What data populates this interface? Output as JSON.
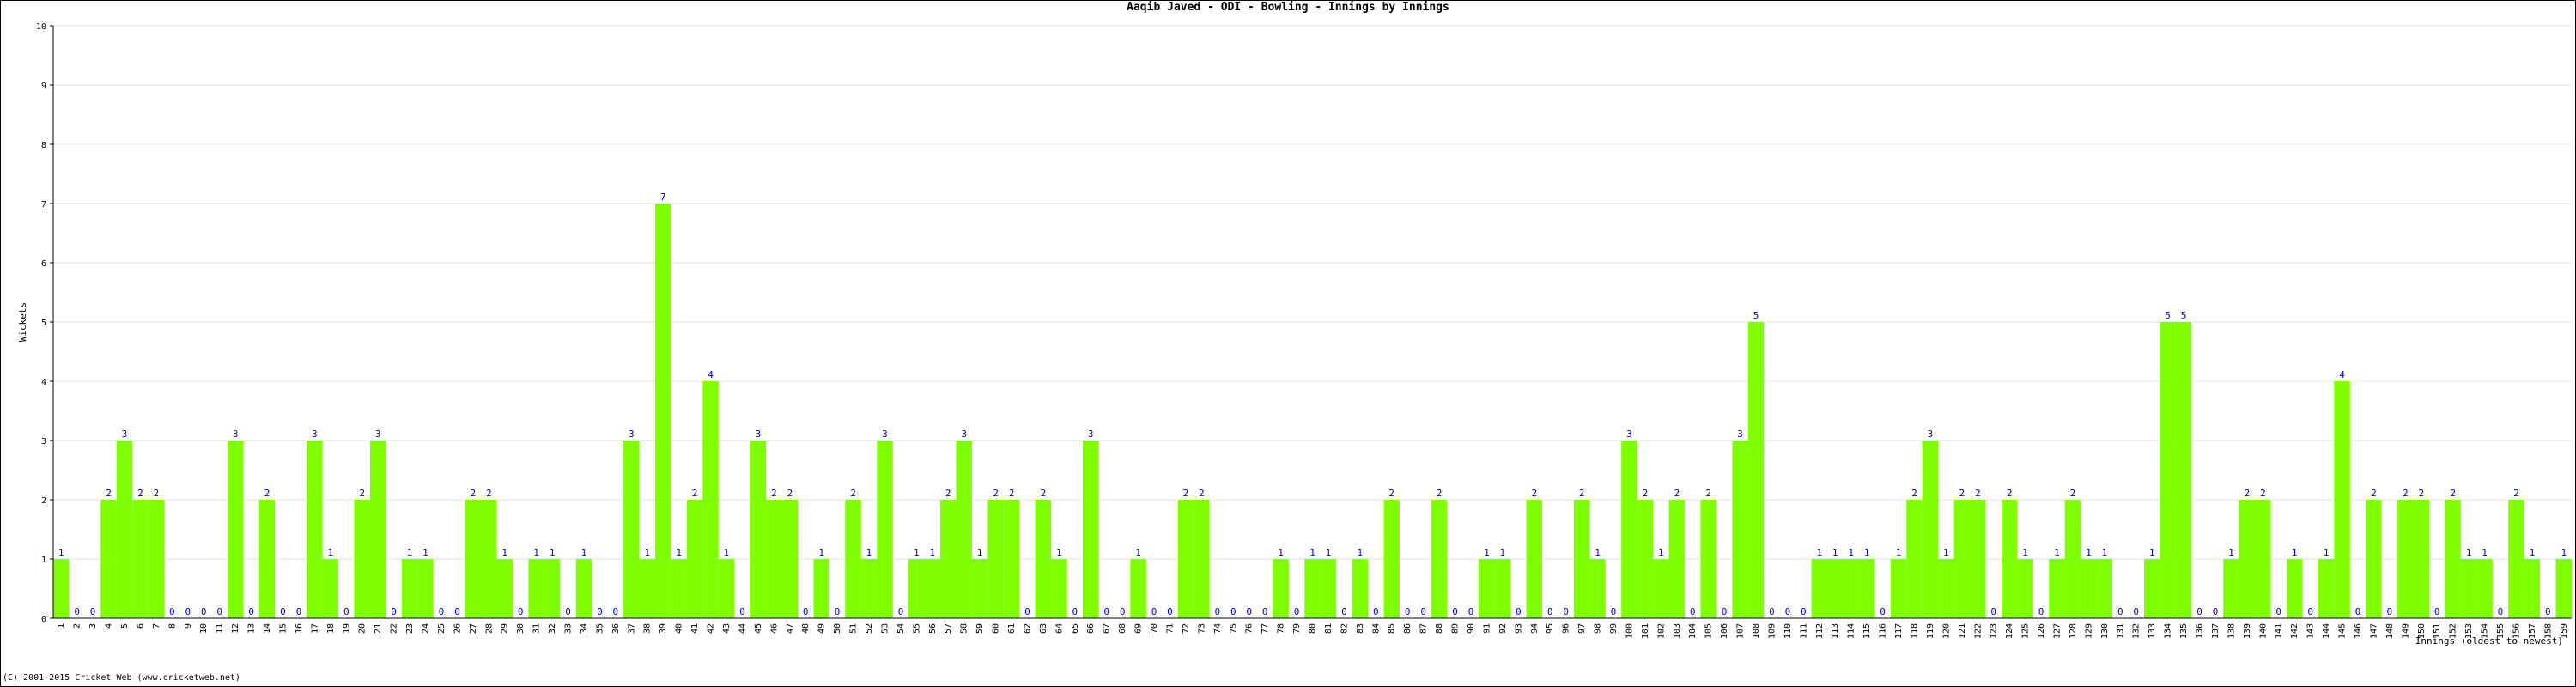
{
  "chart_data": {
    "type": "bar",
    "title": "Aaqib Javed - ODI - Bowling - Innings by Innings",
    "y_label": "Wickets",
    "x_label": "Innings (oldest to newest)",
    "footer": "(C) 2001-2015 Cricket Web (www.cricketweb.net)",
    "color": "#7fff00",
    "label_color": "#0000cc",
    "grid": true,
    "ylim": [
      0,
      10
    ],
    "yticks": [
      0,
      1,
      2,
      3,
      4,
      5,
      6,
      7,
      8,
      9,
      10
    ],
    "categories": [
      "1",
      "2",
      "3",
      "4",
      "5",
      "6",
      "7",
      "8",
      "9",
      "10",
      "11",
      "12",
      "13",
      "14",
      "15",
      "16",
      "17",
      "18",
      "19",
      "20",
      "21",
      "22",
      "23",
      "24",
      "25",
      "26",
      "27",
      "28",
      "29",
      "30",
      "31",
      "32",
      "33",
      "34",
      "35",
      "36",
      "37",
      "38",
      "39",
      "40",
      "41",
      "42",
      "43",
      "44",
      "45",
      "46",
      "47",
      "48",
      "49",
      "50",
      "51",
      "52",
      "53",
      "54",
      "55",
      "56",
      "57",
      "58",
      "59",
      "60",
      "61",
      "62",
      "63",
      "64",
      "65",
      "66",
      "67",
      "68",
      "69",
      "70",
      "71",
      "72",
      "73",
      "74",
      "75",
      "76",
      "77",
      "78",
      "79",
      "80",
      "81",
      "82",
      "83",
      "84",
      "85",
      "86",
      "87",
      "88",
      "89",
      "90",
      "91",
      "92",
      "93",
      "94",
      "95",
      "96",
      "97",
      "98",
      "99",
      "100",
      "101",
      "102",
      "103",
      "104",
      "105",
      "106",
      "107",
      "108",
      "109",
      "110",
      "111",
      "112",
      "113",
      "114",
      "115",
      "116",
      "117",
      "118",
      "119",
      "120",
      "121",
      "122",
      "123",
      "124",
      "125",
      "126",
      "127",
      "128",
      "129",
      "130",
      "131",
      "132",
      "133",
      "134",
      "135",
      "136",
      "137",
      "138",
      "139",
      "140",
      "141",
      "142",
      "143",
      "144",
      "145",
      "146",
      "147",
      "148",
      "149",
      "150",
      "151",
      "152",
      "153",
      "154",
      "155",
      "156",
      "157",
      "158",
      "159"
    ],
    "values": [
      1,
      0,
      0,
      2,
      3,
      2,
      2,
      0,
      0,
      0,
      0,
      3,
      0,
      2,
      0,
      0,
      3,
      1,
      0,
      2,
      3,
      0,
      1,
      1,
      0,
      0,
      2,
      2,
      1,
      0,
      1,
      1,
      0,
      1,
      0,
      0,
      3,
      1,
      7,
      1,
      2,
      4,
      1,
      0,
      3,
      2,
      2,
      0,
      1,
      0,
      2,
      1,
      3,
      0,
      1,
      1,
      2,
      3,
      1,
      2,
      2,
      0,
      2,
      1,
      0,
      3,
      0,
      0,
      1,
      0,
      0,
      2,
      2,
      0,
      0,
      0,
      0,
      1,
      0,
      1,
      1,
      0,
      1,
      0,
      2,
      0,
      0,
      2,
      0,
      0,
      1,
      1,
      0,
      2,
      0,
      0,
      2,
      1,
      0,
      3,
      2,
      1,
      2,
      0,
      2,
      0,
      3,
      5,
      0,
      0,
      0,
      1,
      1,
      1,
      1,
      0,
      1,
      2,
      3,
      1,
      2,
      2,
      0,
      2,
      1,
      0,
      1,
      2,
      1,
      1,
      0,
      0,
      1,
      5,
      5,
      0,
      0,
      1,
      2,
      2,
      0,
      1,
      0,
      1,
      4,
      0,
      2,
      0,
      2,
      2,
      0,
      2,
      1,
      1,
      0,
      2,
      1,
      0,
      1
    ]
  }
}
